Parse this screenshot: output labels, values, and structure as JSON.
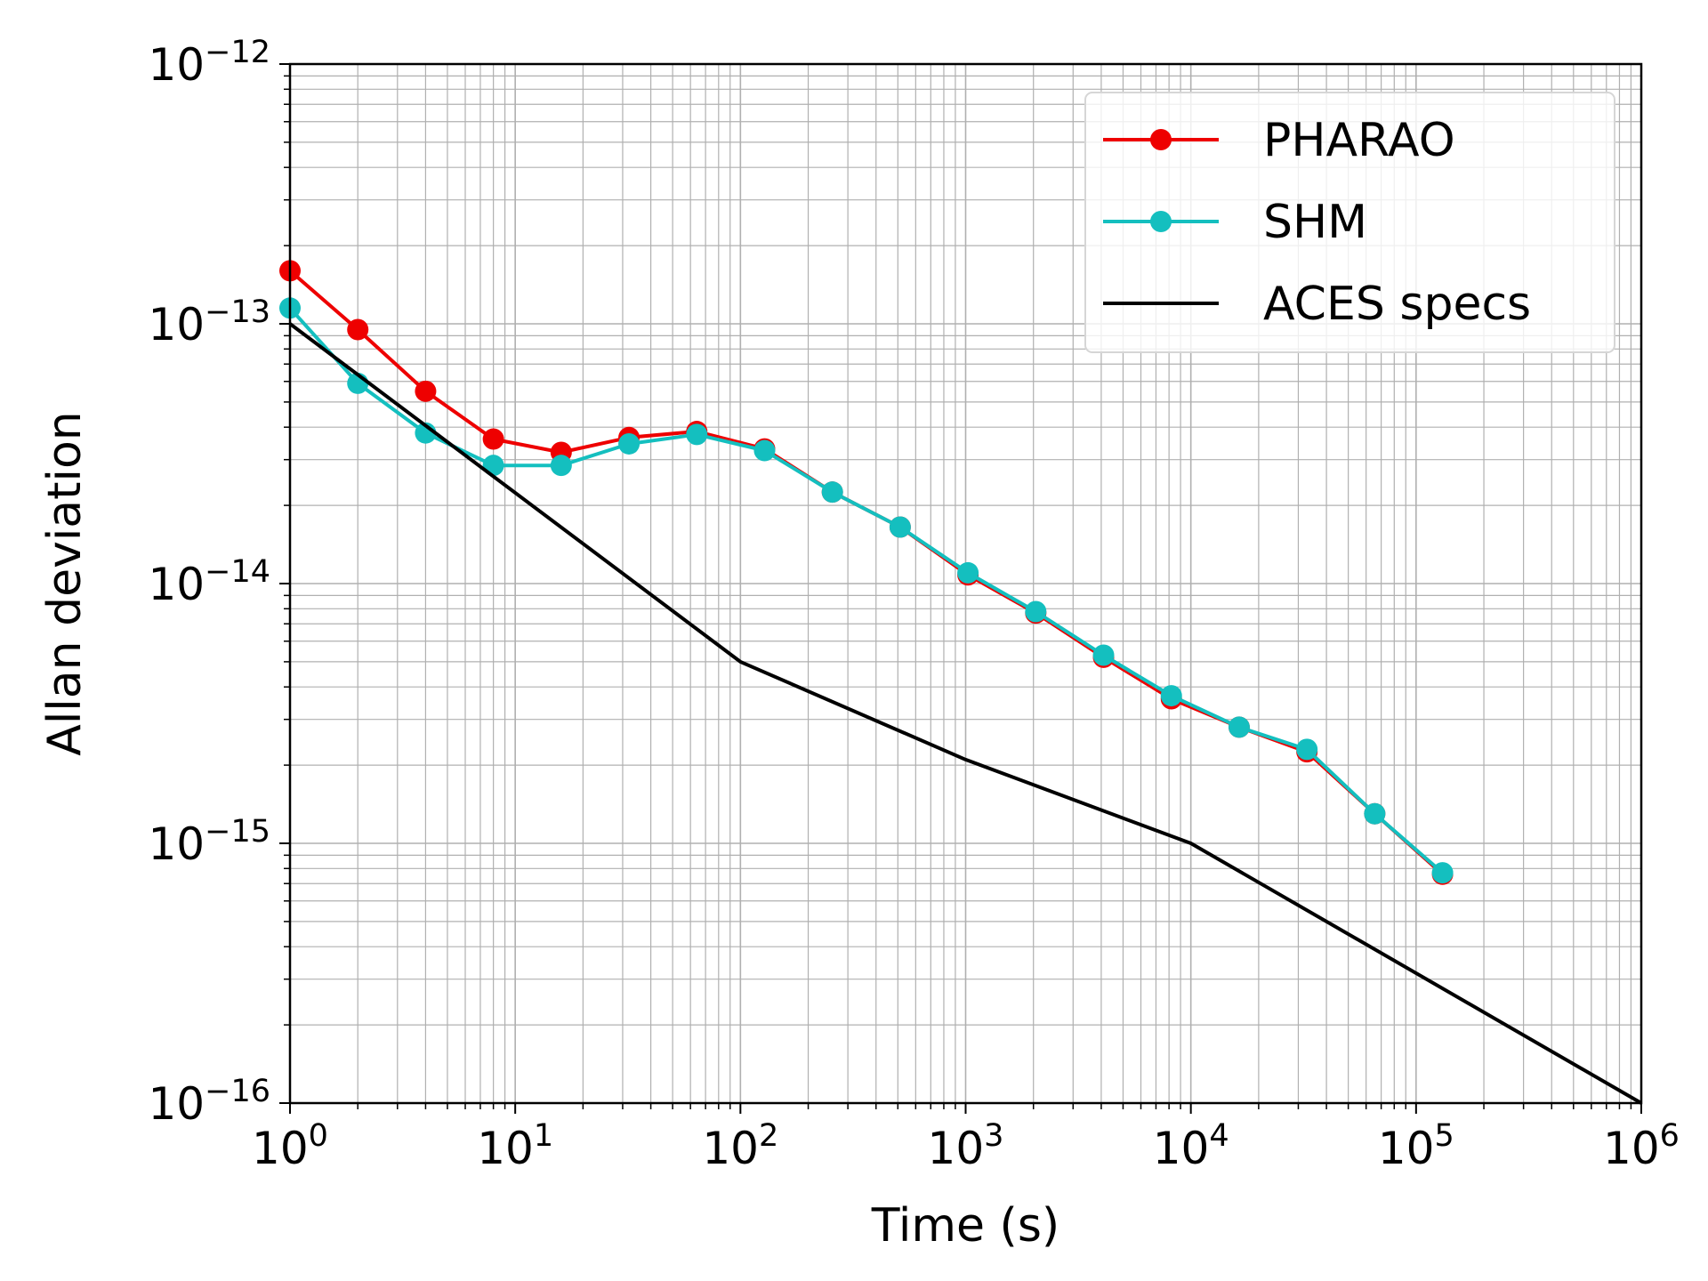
{
  "chart_data": {
    "type": "line",
    "title": "",
    "xlabel": "Time (s)",
    "ylabel": "Allan deviation",
    "x_scale": "log",
    "y_scale": "log",
    "xlim": [
      1,
      1000000
    ],
    "ylim": [
      1e-16,
      1e-12
    ],
    "grid": true,
    "grid_minor": true,
    "legend_position": "top-right",
    "x_ticks": [
      {
        "value": 1,
        "base": "10",
        "exp": "0"
      },
      {
        "value": 10,
        "base": "10",
        "exp": "1"
      },
      {
        "value": 100,
        "base": "10",
        "exp": "2"
      },
      {
        "value": 1000,
        "base": "10",
        "exp": "3"
      },
      {
        "value": 10000,
        "base": "10",
        "exp": "4"
      },
      {
        "value": 100000,
        "base": "10",
        "exp": "5"
      },
      {
        "value": 1000000,
        "base": "10",
        "exp": "6"
      }
    ],
    "y_ticks": [
      {
        "value": 1e-16,
        "base": "10",
        "exp": "−16"
      },
      {
        "value": 1e-15,
        "base": "10",
        "exp": "−15"
      },
      {
        "value": 1e-14,
        "base": "10",
        "exp": "−14"
      },
      {
        "value": 1e-13,
        "base": "10",
        "exp": "−13"
      },
      {
        "value": 1e-12,
        "base": "10",
        "exp": "−12"
      }
    ],
    "series": [
      {
        "name": "PHARAO",
        "color": "#ee0000",
        "marker": "circle",
        "x": [
          1,
          2,
          4,
          8,
          16,
          32,
          64,
          128,
          256,
          512,
          1024,
          2048,
          4096,
          8192,
          16384,
          32768,
          65536,
          131072
        ],
        "y": [
          1.6e-13,
          9.5e-14,
          5.5e-14,
          3.6e-14,
          3.2e-14,
          3.65e-14,
          3.85e-14,
          3.3e-14,
          2.25e-14,
          1.65e-14,
          1.08e-14,
          7.7e-15,
          5.2e-15,
          3.6e-15,
          2.8e-15,
          2.25e-15,
          1.3e-15,
          7.6e-16
        ]
      },
      {
        "name": "SHM",
        "color": "#14bfbf",
        "marker": "circle",
        "x": [
          1,
          2,
          4,
          8,
          16,
          32,
          64,
          128,
          256,
          512,
          1024,
          2048,
          4096,
          8192,
          16384,
          32768,
          65536,
          131072
        ],
        "y": [
          1.15e-13,
          5.9e-14,
          3.8e-14,
          2.85e-14,
          2.85e-14,
          3.45e-14,
          3.75e-14,
          3.25e-14,
          2.25e-14,
          1.65e-14,
          1.1e-14,
          7.8e-15,
          5.3e-15,
          3.7e-15,
          2.8e-15,
          2.3e-15,
          1.3e-15,
          7.7e-16
        ]
      },
      {
        "name": "ACES specs",
        "color": "#000000",
        "marker": "none",
        "x": [
          1,
          100,
          1000,
          10000,
          1000000
        ],
        "y": [
          1e-13,
          5e-15,
          2.1e-15,
          1e-15,
          1e-16
        ]
      }
    ]
  }
}
